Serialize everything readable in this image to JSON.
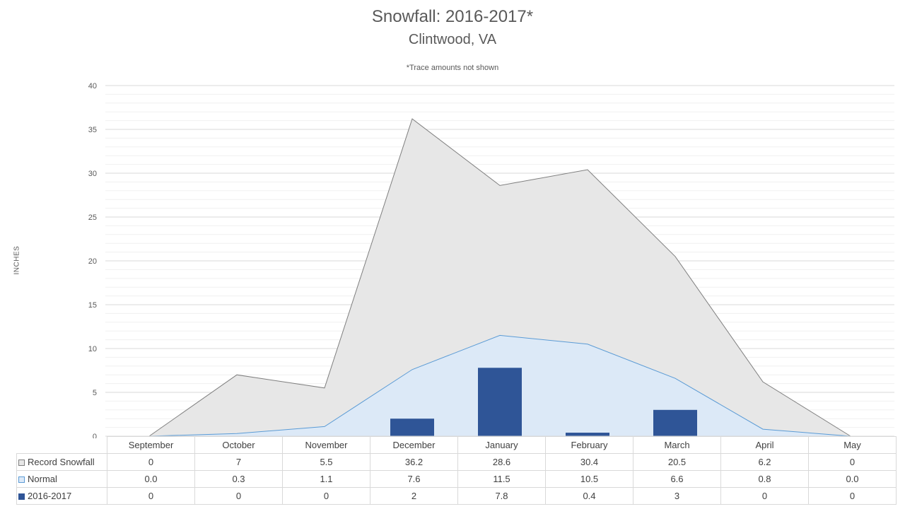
{
  "title": "Snowfall: 2016-2017*",
  "subtitle": "Clintwood, VA",
  "note": "*Trace amounts not shown",
  "chart_data": {
    "type": "area",
    "title": "Snowfall: 2016-2017*",
    "ylabel": "INCHES",
    "ylim": [
      0,
      40
    ],
    "yticks": [
      "0",
      "5",
      "10",
      "15",
      "20",
      "25",
      "30",
      "35",
      "40"
    ],
    "grid": true,
    "legend": "data-table",
    "categories": [
      "September",
      "October",
      "November",
      "December",
      "January",
      "February",
      "March",
      "April",
      "May"
    ],
    "series": [
      {
        "name": "Record Snowfall",
        "kind": "area",
        "color": "#e7e7e7",
        "stroke": "#7f7f7f",
        "values": [
          0,
          7,
          5.5,
          36.2,
          28.6,
          30.4,
          20.5,
          6.2,
          0
        ],
        "labels": [
          "0",
          "7",
          "5.5",
          "36.2",
          "28.6",
          "30.4",
          "20.5",
          "6.2",
          "0"
        ]
      },
      {
        "name": "Normal",
        "kind": "area",
        "color": "#dce9f7",
        "stroke": "#5b9bd5",
        "values": [
          0.0,
          0.3,
          1.1,
          7.6,
          11.5,
          10.5,
          6.6,
          0.8,
          0.0
        ],
        "labels": [
          "0.0",
          "0.3",
          "1.1",
          "7.6",
          "11.5",
          "10.5",
          "6.6",
          "0.8",
          "0.0"
        ]
      },
      {
        "name": "2016-2017",
        "kind": "bar",
        "color": "#2f5597",
        "values": [
          0,
          0,
          0,
          2,
          7.8,
          0.4,
          3,
          0,
          0
        ],
        "labels": [
          "0",
          "0",
          "0",
          "2",
          "7.8",
          "0.4",
          "3",
          "0",
          "0"
        ]
      }
    ]
  }
}
